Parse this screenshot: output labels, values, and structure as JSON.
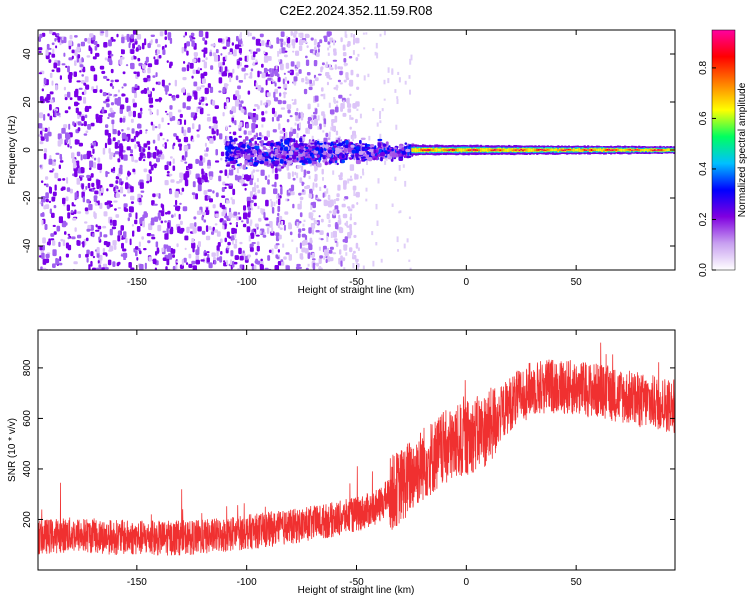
{
  "title": "C2E2.2024.352.11.59.R08",
  "colors": {
    "snr_line": "#f03030",
    "colormap": [
      "#ffffff",
      "#c8a0f0",
      "#8000e0",
      "#0000ff",
      "#00c0ff",
      "#00ff60",
      "#ffff00",
      "#ff8000",
      "#ff0000",
      "#ff00a0"
    ]
  },
  "chart_data": [
    {
      "type": "heatmap",
      "xlabel": "Height of straight line (km)",
      "ylabel": "Frequency (Hz)",
      "xlim": [
        -195,
        95
      ],
      "ylim": [
        -50,
        50
      ],
      "xticks": [
        -150,
        -100,
        -50,
        0,
        50
      ],
      "yticks": [
        -40,
        -20,
        0,
        20,
        40
      ],
      "grid": false,
      "colorbar": {
        "label": "Normalized spectral amplitude",
        "range": [
          0,
          0.95
        ],
        "ticks": [
          0.0,
          0.2,
          0.4,
          0.6,
          0.8
        ]
      },
      "description_of_pattern": {
        "noise_region_x": [
          -195,
          -110
        ],
        "noise_amplitude": 0.15,
        "turbulent_band_x": [
          -110,
          -25
        ],
        "turbulent_band_amplitude": 0.3,
        "narrow_line_x": [
          -25,
          95
        ],
        "narrow_line_frequency_hz": 0,
        "narrow_line_peak_amplitude": 0.9
      }
    },
    {
      "type": "line",
      "xlabel": "Height of straight line (km)",
      "ylabel": "SNR (10 * v/v)",
      "xlim": [
        -195,
        95
      ],
      "ylim": [
        0,
        950
      ],
      "xticks": [
        -150,
        -100,
        -50,
        0,
        50
      ],
      "yticks": [
        200,
        400,
        600,
        800
      ],
      "grid": false,
      "series": [
        {
          "x": [
            -195,
            -180,
            -160,
            -140,
            -120,
            -100,
            -80,
            -60,
            -50,
            -40,
            -35,
            -30,
            -20,
            -10,
            0,
            10,
            20,
            30,
            40,
            50,
            60,
            70,
            80,
            95
          ],
          "values": [
            130,
            140,
            130,
            125,
            130,
            150,
            170,
            200,
            220,
            250,
            300,
            330,
            420,
            480,
            520,
            560,
            660,
            720,
            730,
            720,
            710,
            690,
            670,
            650
          ]
        }
      ]
    }
  ]
}
